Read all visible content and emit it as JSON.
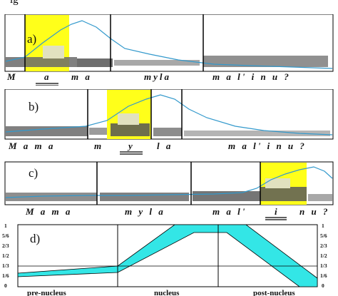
{
  "header_fragment": "ig",
  "panels": [
    {
      "label": "a)",
      "words": [
        "M",
        "a",
        "m a",
        "myla",
        "m a l' i n u ?"
      ],
      "accented": "a"
    },
    {
      "label": "b)",
      "words": [
        "M a m a",
        "m",
        "y",
        "l a",
        "m a l' i n u ?"
      ],
      "accented": "y"
    },
    {
      "label": "c)",
      "words": [
        "M a m a",
        "m y l a",
        "m a l'",
        "i",
        "n u ?"
      ],
      "accented": "i"
    }
  ],
  "diagram": {
    "label": "d)",
    "y_ticks": [
      "1",
      "5/6",
      "2/3",
      "1/2",
      "1/3",
      "1/6",
      "0"
    ],
    "x_sections": [
      "pre-nucleus",
      "nucleus",
      "post-nucleus"
    ],
    "band_color": "#33e6e6"
  },
  "colors": {
    "highlight": "#ffff1a",
    "contour": "#3399cc"
  }
}
